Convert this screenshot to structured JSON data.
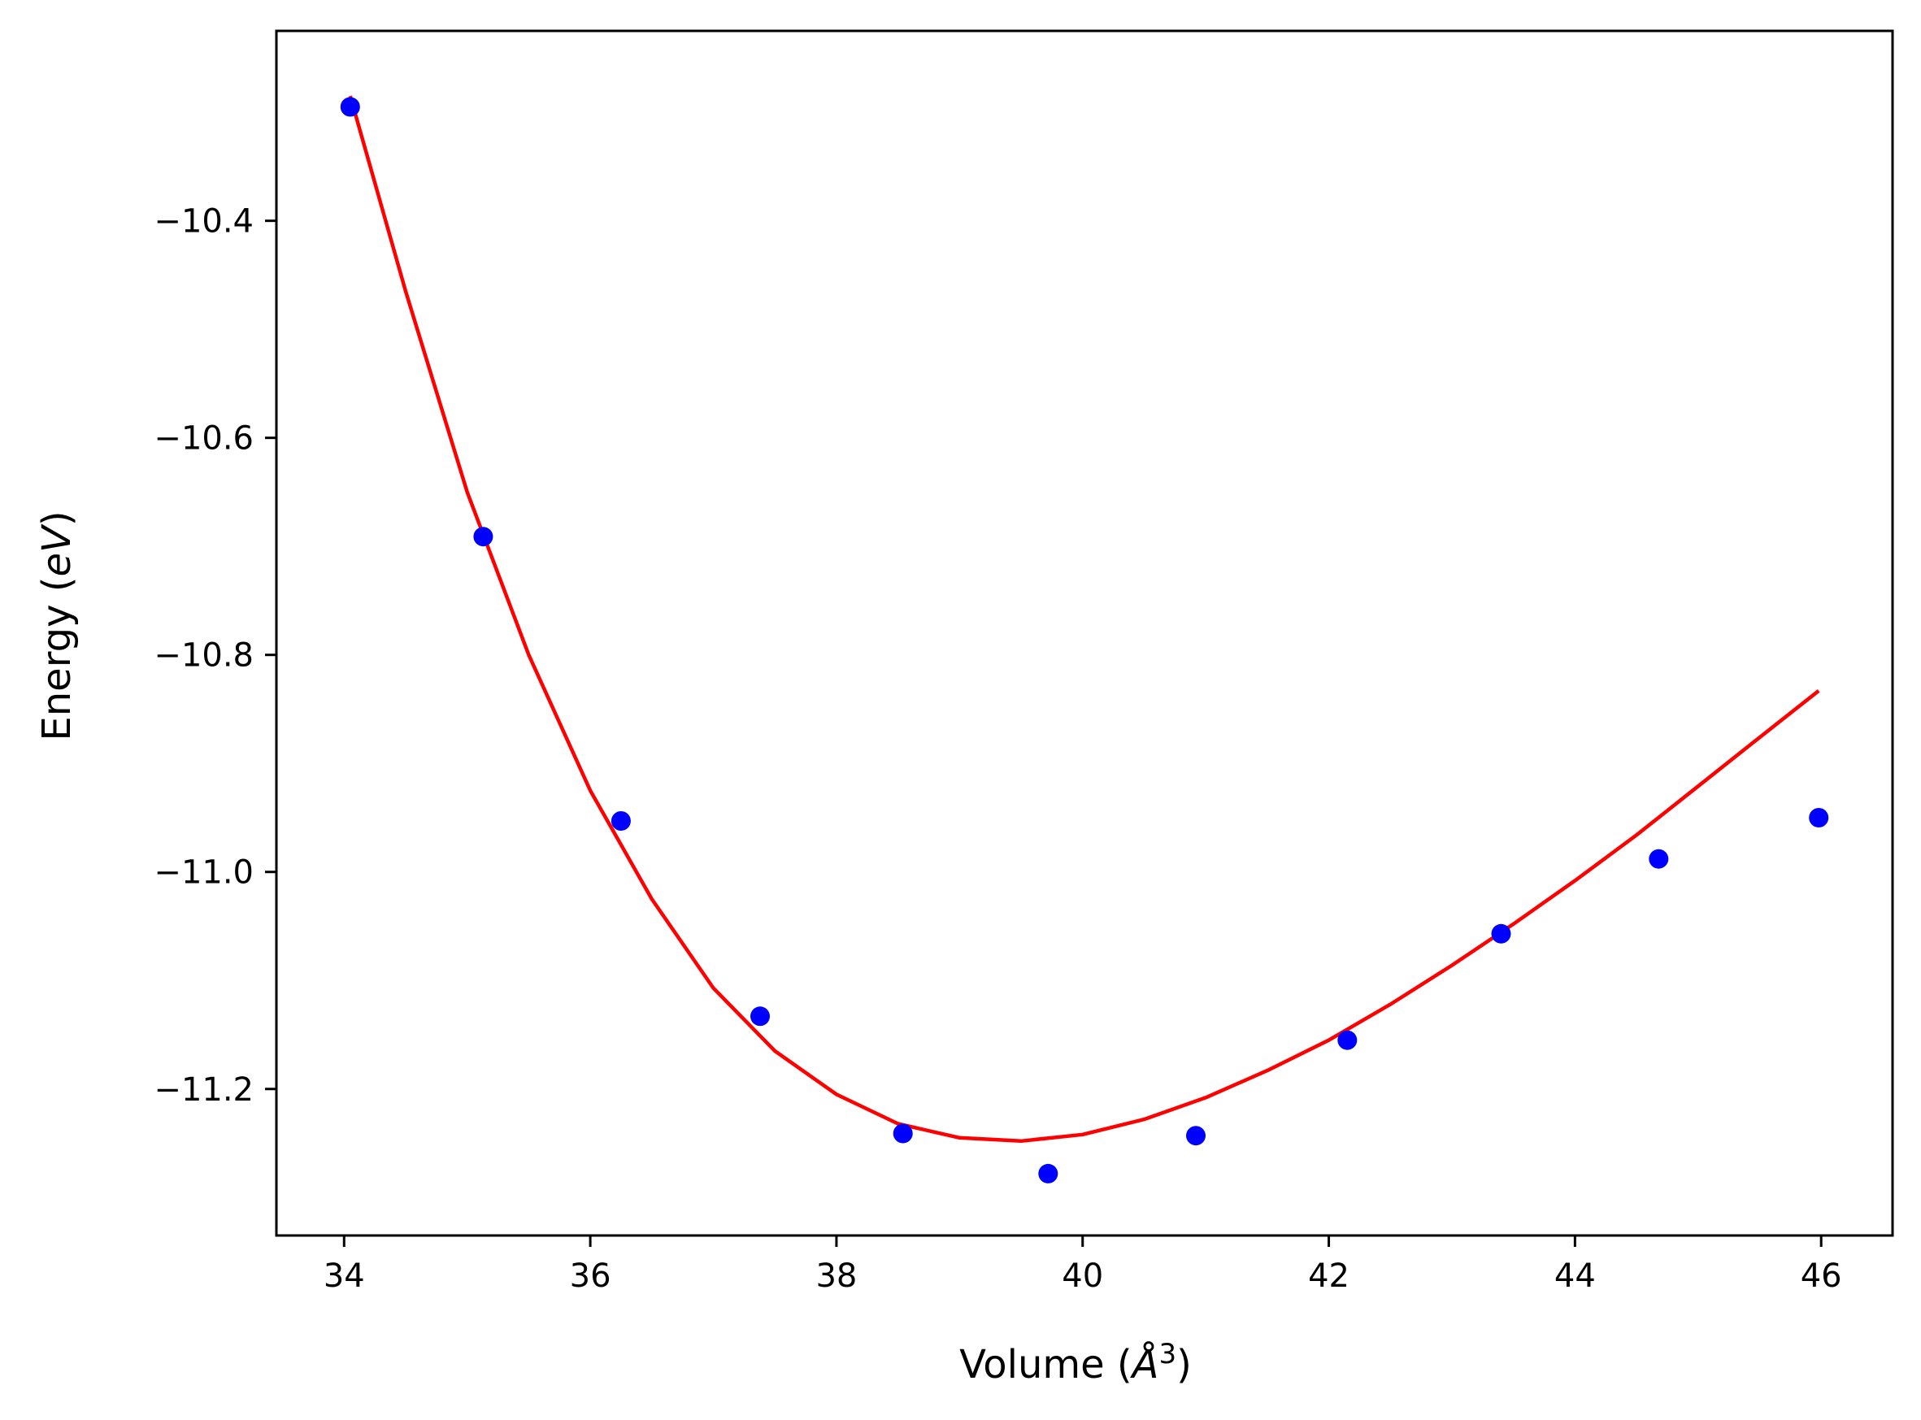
{
  "chart_data": {
    "type": "scatter",
    "title": "",
    "xlabel_main": "Volume (",
    "xlabel_unit": "Å",
    "xlabel_exp": "3",
    "xlabel_close": ")",
    "ylabel_main": "Energy (",
    "ylabel_unit": "eV",
    "ylabel_close": ")",
    "xlim": [
      33.45,
      46.58
    ],
    "ylim": [
      -11.335,
      -10.225
    ],
    "x_ticks": [
      34,
      36,
      38,
      40,
      42,
      44,
      46
    ],
    "x_tick_labels": [
      "34",
      "36",
      "38",
      "40",
      "42",
      "44",
      "46"
    ],
    "y_ticks": [
      -10.4,
      -10.6,
      -10.8,
      -11.0,
      -11.2
    ],
    "y_tick_labels": [
      "−10.4",
      "−10.6",
      "−10.8",
      "−11.0",
      "−11.2"
    ],
    "grid": false,
    "series": [
      {
        "kind": "points",
        "color": "#0000ff",
        "x": [
          34.05,
          35.13,
          36.25,
          37.38,
          38.54,
          39.72,
          40.92,
          42.15,
          43.4,
          44.68,
          45.98
        ],
        "y": [
          -10.295,
          -10.691,
          -10.953,
          -11.133,
          -11.241,
          -11.278,
          -11.243,
          -11.155,
          -11.057,
          -10.988,
          -10.95
        ]
      },
      {
        "kind": "fit",
        "color": "#ff0000",
        "x": [
          34.05,
          34.5,
          35.0,
          35.5,
          36.0,
          36.5,
          37.0,
          37.5,
          38.0,
          38.5,
          39.0,
          39.5,
          40.0,
          40.5,
          41.0,
          41.5,
          42.0,
          42.5,
          43.0,
          43.5,
          44.0,
          44.5,
          45.0,
          45.5,
          45.98
        ],
        "y": [
          -10.285,
          -10.465,
          -10.65,
          -10.8,
          -10.925,
          -11.025,
          -11.107,
          -11.165,
          -11.205,
          -11.232,
          -11.245,
          -11.248,
          -11.242,
          -11.228,
          -11.208,
          -11.183,
          -11.155,
          -11.122,
          -11.086,
          -11.048,
          -11.008,
          -10.966,
          -10.921,
          -10.876,
          -10.833
        ]
      }
    ]
  }
}
